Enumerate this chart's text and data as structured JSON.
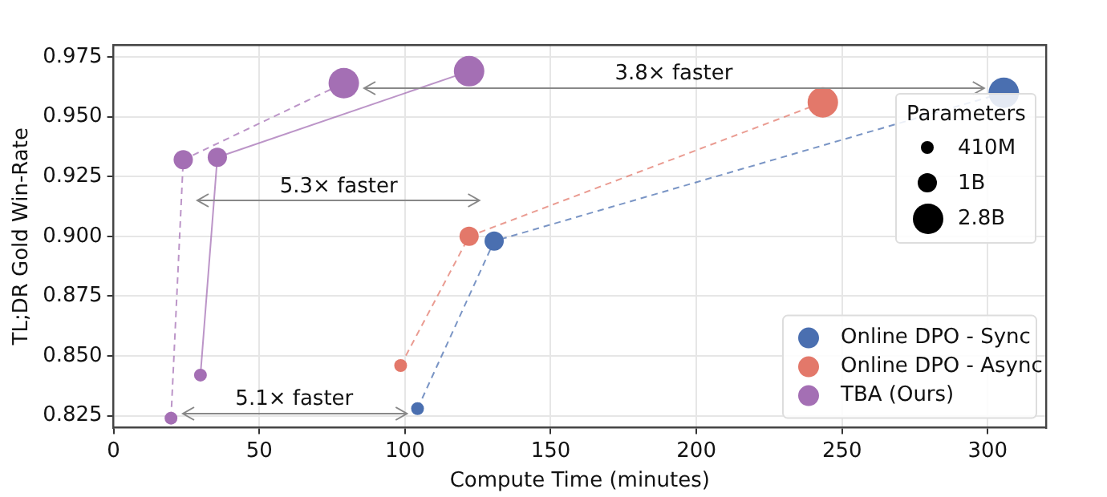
{
  "chart_data": {
    "type": "line",
    "xlabel": "Compute Time (minutes)",
    "ylabel": "TL;DR Gold Win-Rate",
    "legend_title": "Parameters",
    "size_legend": [
      "410M",
      "1B",
      "2.8B"
    ],
    "series": [
      {
        "name": "Online DPO - Sync",
        "color": "#4a6fb0",
        "line_style": "dashed",
        "x": [
          104.3,
          130.6,
          305.5
        ],
        "values": [
          0.828,
          0.898,
          0.96
        ]
      },
      {
        "name": "Online DPO - Async",
        "color": "#e3786a",
        "line_style": "dashed",
        "x": [
          98.5,
          122,
          243.4
        ],
        "values": [
          0.846,
          0.9,
          0.956
        ]
      },
      {
        "name": "TBA (Ours)",
        "color": "#a46fb4",
        "line_style": "dashed",
        "x": [
          19.7,
          23.9,
          79
        ],
        "values": [
          0.824,
          0.932,
          0.964
        ]
      },
      {
        "color": "#a46fb4",
        "line_style": "solid",
        "x": [
          29.8,
          35.6,
          122
        ],
        "values": [
          0.842,
          0.933,
          0.969
        ]
      }
    ],
    "annotations": [
      "3.8× faster",
      "5.3× faster",
      "5.1× faster"
    ],
    "marker": "circle",
    "grid": true,
    "legend": "bottom right",
    "xlim": [
      0,
      320
    ],
    "xticks": [
      0,
      50,
      100,
      150,
      200,
      250,
      300
    ],
    "ylim": [
      0.82,
      0.98
    ],
    "yticks": [
      0.825,
      {
        "value": 0.85,
        "label": "0.850"
      },
      0.875,
      {
        "value": 0.9,
        "label": "0.900"
      },
      0.925,
      {
        "value": 0.95,
        "label": "0.950"
      },
      0.975
    ]
  }
}
